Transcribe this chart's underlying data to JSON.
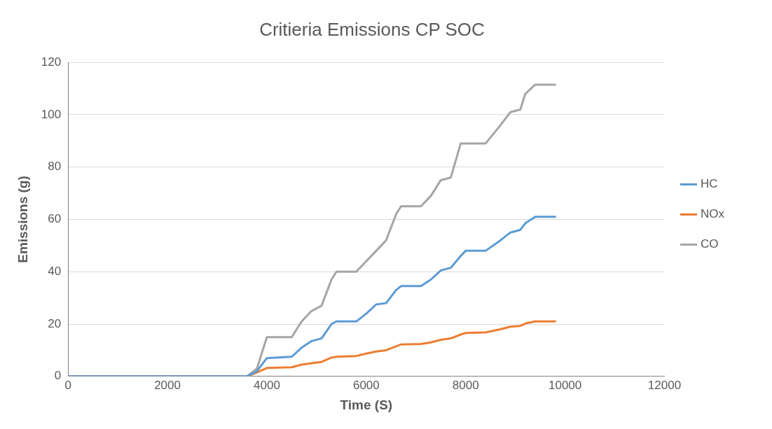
{
  "chart_data": {
    "type": "line",
    "title": "Critieria Emissions CP SOC",
    "xlabel": "Time (S)",
    "ylabel": "Emissions (g)",
    "x": [
      0,
      3600,
      3800,
      4000,
      4500,
      4700,
      4900,
      5100,
      5300,
      5400,
      5800,
      6000,
      6200,
      6400,
      6600,
      6700,
      7100,
      7300,
      7500,
      7700,
      7900,
      8000,
      8400,
      8700,
      8900,
      9100,
      9200,
      9400,
      9800
    ],
    "series": [
      {
        "name": "HC",
        "color": "#5b9bd5",
        "values": [
          0,
          0,
          2,
          7,
          7.5,
          11,
          13.5,
          14.5,
          20,
          21,
          21,
          24,
          27.5,
          28,
          33,
          34.5,
          34.5,
          37,
          40.5,
          41.5,
          46,
          48,
          48,
          52,
          55,
          56,
          58.5,
          61,
          61
        ]
      },
      {
        "name": "NOx",
        "color": "#ed7d31",
        "values": [
          0,
          0,
          1.5,
          3.2,
          3.5,
          4.5,
          5,
          5.5,
          7.2,
          7.5,
          7.8,
          8.7,
          9.5,
          10,
          11.5,
          12.2,
          12.4,
          13,
          14,
          14.5,
          16,
          16.6,
          16.8,
          18,
          19,
          19.3,
          20.2,
          21,
          21
        ]
      },
      {
        "name": "CO",
        "color": "#a5a5a5",
        "values": [
          0,
          0,
          3,
          15,
          15,
          21,
          25,
          27,
          37,
          40,
          40,
          44,
          48,
          52,
          62,
          65,
          65,
          69,
          75,
          76,
          89,
          89,
          89,
          96,
          101,
          102,
          108,
          111.5,
          111.5
        ]
      }
    ],
    "xlim": [
      0,
      12000
    ],
    "xticks": [
      0,
      2000,
      4000,
      6000,
      8000,
      10000,
      12000
    ],
    "ylim": [
      0,
      120
    ],
    "yticks": [
      0,
      20,
      40,
      60,
      80,
      100,
      120
    ],
    "grid": "y",
    "legend": "right",
    "marker": "none",
    "line_style": "solid"
  }
}
